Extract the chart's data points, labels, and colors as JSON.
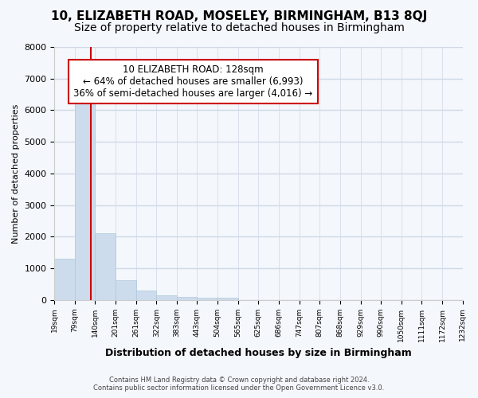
{
  "title_line1": "10, ELIZABETH ROAD, MOSELEY, BIRMINGHAM, B13 8QJ",
  "title_line2": "Size of property relative to detached houses in Birmingham",
  "xlabel": "Distribution of detached houses by size in Birmingham",
  "ylabel": "Number of detached properties",
  "footer_line1": "Contains HM Land Registry data © Crown copyright and database right 2024.",
  "footer_line2": "Contains public sector information licensed under the Open Government Licence v3.0.",
  "bar_edges": [
    19,
    79,
    140,
    201,
    261,
    322,
    383,
    443,
    504,
    565,
    625,
    686,
    747,
    807,
    868,
    929,
    990,
    1050,
    1111,
    1172,
    1232
  ],
  "bar_heights": [
    1300,
    6600,
    2100,
    620,
    300,
    150,
    100,
    70,
    70,
    0,
    0,
    0,
    0,
    0,
    0,
    0,
    0,
    0,
    0,
    0
  ],
  "bar_color": "#ccdcec",
  "bar_edgecolor": "#b0c8dc",
  "property_size": 128,
  "vline_color": "#cc0000",
  "annotation_text": "10 ELIZABETH ROAD: 128sqm\n← 64% of detached houses are smaller (6,993)\n36% of semi-detached houses are larger (4,016) →",
  "annotation_box_facecolor": "#ffffff",
  "annotation_box_edgecolor": "#cc0000",
  "ylim": [
    0,
    8000
  ],
  "yticks": [
    0,
    1000,
    2000,
    3000,
    4000,
    5000,
    6000,
    7000,
    8000
  ],
  "background_color": "#f4f7fb",
  "grid_color": "#d0d8e8",
  "title_fontsize": 11,
  "subtitle_fontsize": 10
}
